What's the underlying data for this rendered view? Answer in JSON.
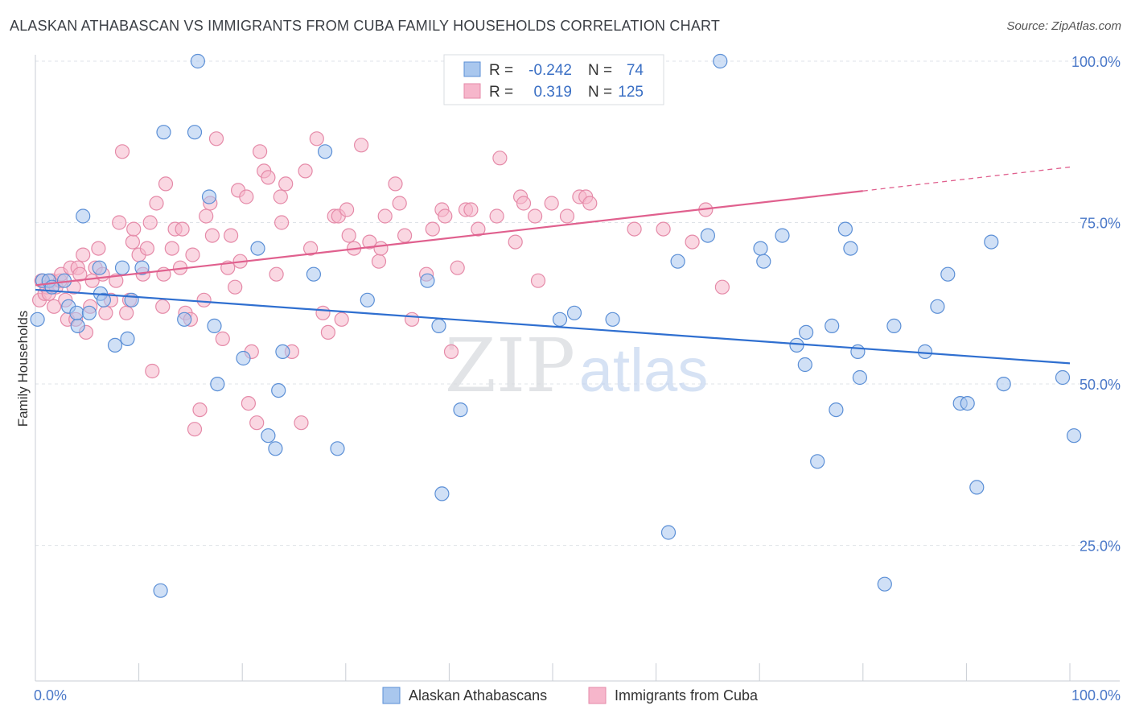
{
  "title": "ALASKAN ATHABASCAN VS IMMIGRANTS FROM CUBA FAMILY HOUSEHOLDS CORRELATION CHART",
  "source": "Source: ZipAtlas.com",
  "watermark": {
    "zip": "ZIP",
    "atlas": "atlas"
  },
  "colors": {
    "blue_fill": "#a9c7ee",
    "blue_stroke": "#5b8fd6",
    "blue_line": "#2f6fd0",
    "pink_fill": "#f6b6cb",
    "pink_stroke": "#e58aa8",
    "pink_line": "#e0608e",
    "grid": "#dfe3e8",
    "tick_text": "#4a78c8"
  },
  "legend": {
    "rows": [
      {
        "r_label": "R = ",
        "r_value": "-0.242",
        "n_label": "N = ",
        "n_value": "74",
        "series": "blue"
      },
      {
        "r_label": "R = ",
        "r_value": "0.319",
        "n_label": "N = ",
        "n_value": "125",
        "series": "pink"
      }
    ]
  },
  "chart_data": {
    "type": "scatter",
    "title": "ALASKAN ATHABASCAN VS IMMIGRANTS FROM CUBA FAMILY HOUSEHOLDS CORRELATION CHART",
    "xlabel": "",
    "ylabel": "Family Households",
    "xlim": [
      0,
      100
    ],
    "ylim": [
      4,
      101
    ],
    "x_ticks": [
      "0.0%",
      "100.0%"
    ],
    "y_ticks": [
      {
        "value": 25,
        "label": "25.0%"
      },
      {
        "value": 50,
        "label": "50.0%"
      },
      {
        "value": 75,
        "label": "75.0%"
      },
      {
        "value": 100,
        "label": "100.0%"
      }
    ],
    "grid": true,
    "legend_position": "bottom",
    "series": [
      {
        "name": "Alaskan Athabascans",
        "color": "blue",
        "trend": {
          "x": [
            0,
            100
          ],
          "y": [
            64.6,
            53.2
          ]
        },
        "points": [
          [
            0.2,
            60
          ],
          [
            0.7,
            66
          ],
          [
            1.3,
            66
          ],
          [
            1.6,
            65
          ],
          [
            2.8,
            66
          ],
          [
            3.2,
            62
          ],
          [
            4.1,
            59
          ],
          [
            4,
            61
          ],
          [
            4.6,
            76
          ],
          [
            5.2,
            61
          ],
          [
            6.2,
            68
          ],
          [
            6.3,
            64
          ],
          [
            6.6,
            63
          ],
          [
            7.7,
            56
          ],
          [
            8.4,
            68
          ],
          [
            8.9,
            57
          ],
          [
            9.3,
            63
          ],
          [
            10.3,
            68
          ],
          [
            12.1,
            18
          ],
          [
            12.4,
            89
          ],
          [
            14.4,
            60
          ],
          [
            15.4,
            89
          ],
          [
            15.7,
            100
          ],
          [
            16.8,
            79
          ],
          [
            17.3,
            59
          ],
          [
            17.6,
            50
          ],
          [
            20.1,
            54
          ],
          [
            21.5,
            71
          ],
          [
            22.5,
            42
          ],
          [
            23.2,
            40
          ],
          [
            23.5,
            49
          ],
          [
            23.9,
            55
          ],
          [
            26.9,
            67
          ],
          [
            28,
            86
          ],
          [
            29.2,
            40
          ],
          [
            32.1,
            63
          ],
          [
            37.9,
            66
          ],
          [
            39,
            59
          ],
          [
            39.3,
            33
          ],
          [
            41.1,
            46
          ],
          [
            50.7,
            60
          ],
          [
            52.1,
            61
          ],
          [
            55.8,
            60
          ],
          [
            61.2,
            27
          ],
          [
            62.1,
            69
          ],
          [
            65,
            73
          ],
          [
            66.2,
            100
          ],
          [
            70.1,
            71
          ],
          [
            70.4,
            69
          ],
          [
            72.2,
            73
          ],
          [
            73.6,
            56
          ],
          [
            74.4,
            53
          ],
          [
            74.5,
            58
          ],
          [
            75.6,
            38
          ],
          [
            77,
            59
          ],
          [
            77.4,
            46
          ],
          [
            78.3,
            74
          ],
          [
            78.8,
            71
          ],
          [
            79.5,
            55
          ],
          [
            79.7,
            51
          ],
          [
            82.1,
            19
          ],
          [
            83,
            59
          ],
          [
            86,
            55
          ],
          [
            87.2,
            62
          ],
          [
            88.2,
            67
          ],
          [
            89.4,
            47
          ],
          [
            90.1,
            47
          ],
          [
            91,
            34
          ],
          [
            92.4,
            72
          ],
          [
            93.6,
            50
          ],
          [
            99.3,
            51
          ],
          [
            100.4,
            42
          ]
        ]
      },
      {
        "name": "Immigrants from Cuba",
        "color": "pink",
        "trend": {
          "x": [
            0,
            80
          ],
          "y": [
            65.3,
            79.9
          ],
          "dashed_extension": {
            "x": [
              80,
              100
            ],
            "y": [
              79.9,
              83.6
            ]
          }
        },
        "points": [
          [
            0.4,
            63
          ],
          [
            0.6,
            66
          ],
          [
            0.9,
            64
          ],
          [
            1.1,
            65
          ],
          [
            1.3,
            64
          ],
          [
            1.6,
            66
          ],
          [
            1.8,
            62
          ],
          [
            2,
            65
          ],
          [
            2.4,
            66
          ],
          [
            2.5,
            67
          ],
          [
            2.9,
            63
          ],
          [
            3.1,
            60
          ],
          [
            3.4,
            68
          ],
          [
            3.7,
            65
          ],
          [
            3.9,
            60
          ],
          [
            4.1,
            68
          ],
          [
            4.3,
            67
          ],
          [
            4.6,
            70
          ],
          [
            4.9,
            58
          ],
          [
            5.3,
            62
          ],
          [
            5.5,
            66
          ],
          [
            5.8,
            68
          ],
          [
            6.1,
            71
          ],
          [
            6.5,
            67
          ],
          [
            6.8,
            61
          ],
          [
            7.3,
            63
          ],
          [
            7.8,
            66
          ],
          [
            8.1,
            75
          ],
          [
            8.4,
            86
          ],
          [
            8.8,
            61
          ],
          [
            9.1,
            63
          ],
          [
            9.4,
            72
          ],
          [
            9.5,
            74
          ],
          [
            10,
            70
          ],
          [
            10.4,
            67
          ],
          [
            10.8,
            71
          ],
          [
            11.1,
            75
          ],
          [
            11.3,
            52
          ],
          [
            11.7,
            78
          ],
          [
            12.3,
            62
          ],
          [
            12.4,
            67
          ],
          [
            12.6,
            81
          ],
          [
            13.2,
            71
          ],
          [
            13.5,
            74
          ],
          [
            14,
            68
          ],
          [
            14.2,
            74
          ],
          [
            14.5,
            61
          ],
          [
            15,
            60
          ],
          [
            15.2,
            70
          ],
          [
            15.4,
            43
          ],
          [
            15.9,
            46
          ],
          [
            16.3,
            63
          ],
          [
            16.5,
            76
          ],
          [
            16.9,
            78
          ],
          [
            17.1,
            73
          ],
          [
            17.5,
            88
          ],
          [
            18.1,
            57
          ],
          [
            18.6,
            68
          ],
          [
            18.9,
            73
          ],
          [
            19.3,
            65
          ],
          [
            19.6,
            80
          ],
          [
            19.8,
            69
          ],
          [
            20.4,
            79
          ],
          [
            20.6,
            47
          ],
          [
            20.9,
            55
          ],
          [
            21.4,
            44
          ],
          [
            21.7,
            86
          ],
          [
            22.1,
            83
          ],
          [
            22.5,
            82
          ],
          [
            23.3,
            67
          ],
          [
            23.7,
            79
          ],
          [
            23.8,
            75
          ],
          [
            24.2,
            81
          ],
          [
            24.8,
            55
          ],
          [
            25.7,
            44
          ],
          [
            26.1,
            83
          ],
          [
            26.6,
            71
          ],
          [
            27.2,
            88
          ],
          [
            27.8,
            61
          ],
          [
            28.3,
            58
          ],
          [
            28.9,
            76
          ],
          [
            29.3,
            76
          ],
          [
            29.6,
            60
          ],
          [
            30.1,
            77
          ],
          [
            30.3,
            73
          ],
          [
            30.8,
            71
          ],
          [
            31.5,
            87
          ],
          [
            32.3,
            72
          ],
          [
            33.2,
            69
          ],
          [
            33.4,
            71
          ],
          [
            33.8,
            76
          ],
          [
            34.8,
            81
          ],
          [
            35.2,
            78
          ],
          [
            35.7,
            73
          ],
          [
            36.4,
            60
          ],
          [
            37.8,
            67
          ],
          [
            38.4,
            74
          ],
          [
            39.3,
            77
          ],
          [
            39.6,
            76
          ],
          [
            40.2,
            55
          ],
          [
            40.8,
            68
          ],
          [
            41.6,
            77
          ],
          [
            42.1,
            77
          ],
          [
            42.8,
            74
          ],
          [
            44.6,
            76
          ],
          [
            44.9,
            85
          ],
          [
            46.4,
            72
          ],
          [
            46.9,
            79
          ],
          [
            47.2,
            78
          ],
          [
            48.3,
            76
          ],
          [
            48.6,
            66
          ],
          [
            49.9,
            78
          ],
          [
            51.4,
            76
          ],
          [
            52.6,
            79
          ],
          [
            53.2,
            79
          ],
          [
            53.6,
            78
          ],
          [
            57.9,
            74
          ],
          [
            60.7,
            74
          ],
          [
            63.5,
            72
          ],
          [
            64.8,
            77
          ],
          [
            66.4,
            65
          ]
        ]
      }
    ]
  }
}
